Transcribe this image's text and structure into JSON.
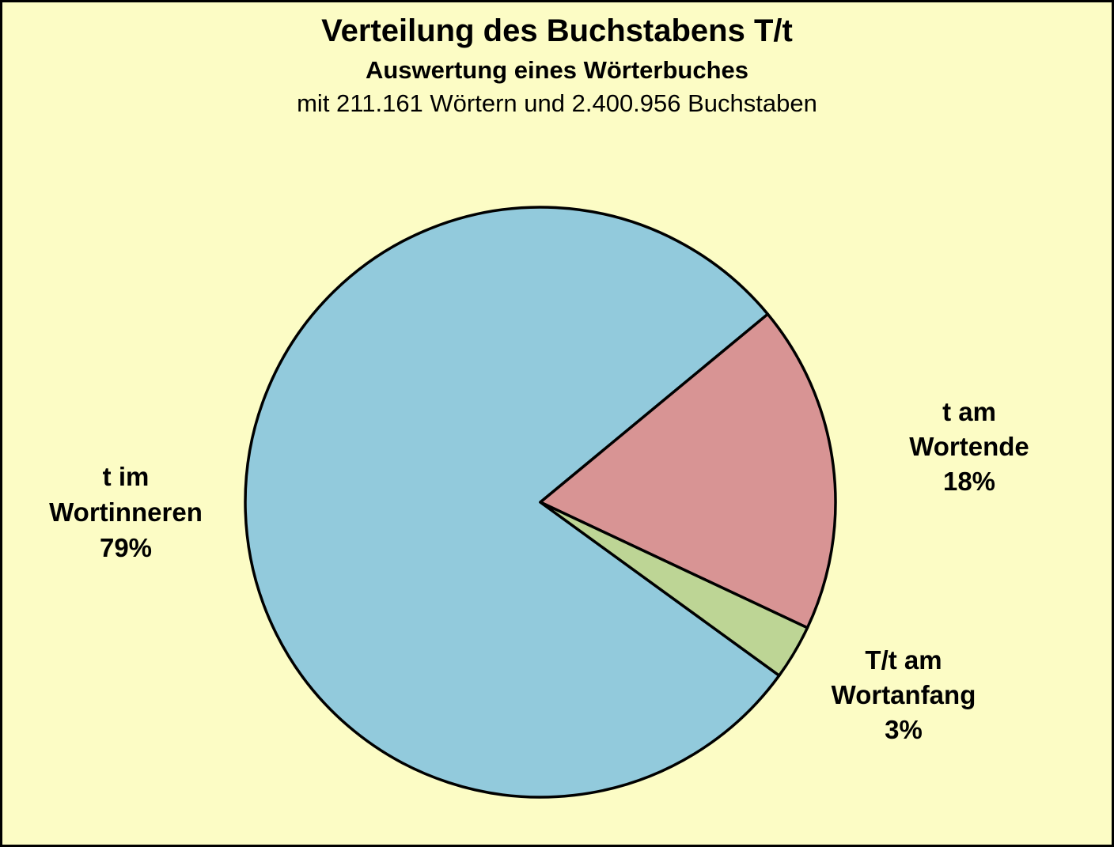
{
  "header": {
    "title": "Verteilung des Buchstabens T/t",
    "subtitle": "Auswertung eines Wörterbuches",
    "subtitle2": "mit 211.161 Wörtern und 2.400.956 Buchstaben"
  },
  "colors": {
    "background": "#FCFCC5",
    "frame": "#000000",
    "slice_stroke": "#000000"
  },
  "chart_data": {
    "type": "pie",
    "title": "Verteilung des Buchstabens T/t",
    "subtitle": "Auswertung eines Wörterbuches",
    "note": "mit 211.161 Wörtern und 2.400.956 Buchstaben",
    "units": "%",
    "start_angle_deg": -36,
    "direction": "clockwise",
    "legend_position": "none",
    "slices": [
      {
        "label": "t im Wortinneren",
        "value": 79,
        "color": "#92CADC",
        "label_lines": [
          "t im",
          "Wortinneren",
          "79%"
        ]
      },
      {
        "label": "t am Wortende",
        "value": 18,
        "color": "#D89494",
        "label_lines": [
          "t am",
          "Wortende",
          "18%"
        ]
      },
      {
        "label": "T/t am Wortanfang",
        "value": 3,
        "color": "#BDD595",
        "label_lines": [
          "T/t am",
          "Wortanfang",
          "3%"
        ]
      }
    ]
  }
}
